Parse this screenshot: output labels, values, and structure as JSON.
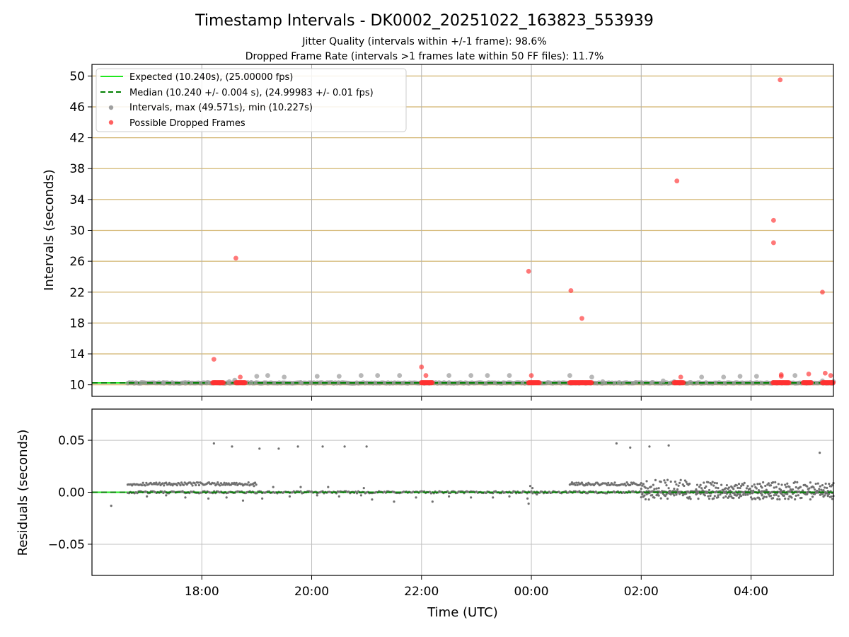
{
  "chart_data": {
    "type": "scatter",
    "title": "Timestamp Intervals - DK0002_20251022_163823_553939",
    "subtitles": [
      "Jitter Quality (intervals within +/-1 frame): 98.6%",
      "Dropped Frame Rate (intervals >1 frames late within 50 FF files): 11.7%"
    ],
    "xlabel": "Time (UTC)",
    "x_unit": "hours since 16:00 UTC",
    "xlim": [
      0.0,
      13.5
    ],
    "x_ticks": [
      {
        "x": 2,
        "label": "18:00"
      },
      {
        "x": 4,
        "label": "20:00"
      },
      {
        "x": 6,
        "label": "22:00"
      },
      {
        "x": 8,
        "label": "00:00"
      },
      {
        "x": 10,
        "label": "02:00"
      },
      {
        "x": 12,
        "label": "04:00"
      }
    ],
    "panels": [
      {
        "id": "intervals",
        "ylabel": "Intervals (seconds)",
        "ylim": [
          8.5,
          51.5
        ],
        "y_ticks": [
          10,
          14,
          18,
          22,
          26,
          30,
          34,
          38,
          42,
          46,
          50
        ],
        "grid_color": "#d2b46e",
        "expected": 10.24,
        "median": 10.24,
        "legend": [
          {
            "kind": "solid",
            "color": "#1fe81f",
            "label": "Expected (10.240s), (25.00000 fps)"
          },
          {
            "kind": "dashed",
            "color": "#008000",
            "label": "Median (10.240 +/- 0.004 s), (24.99983 +/- 0.01 fps)"
          },
          {
            "kind": "dot",
            "color": "#a0a0a0",
            "label": "Intervals, max (49.571s), min (10.227s)"
          },
          {
            "kind": "dot",
            "color": "#ff6060",
            "label": "Possible Dropped Frames"
          }
        ],
        "series": [
          {
            "name": "Intervals",
            "color": "#808080",
            "points": [
              [
                0.9,
                10.3
              ],
              [
                1.3,
                10.3
              ],
              [
                1.7,
                10.3
              ],
              [
                2.1,
                10.3
              ],
              [
                2.5,
                10.4
              ],
              [
                2.6,
                10.6
              ],
              [
                2.9,
                10.3
              ],
              [
                3.0,
                11.1
              ],
              [
                3.2,
                11.2
              ],
              [
                3.5,
                11.0
              ],
              [
                3.8,
                10.3
              ],
              [
                4.1,
                11.1
              ],
              [
                4.5,
                11.1
              ],
              [
                4.9,
                11.2
              ],
              [
                5.2,
                11.2
              ],
              [
                5.6,
                11.2
              ],
              [
                6.2,
                10.3
              ],
              [
                6.5,
                11.2
              ],
              [
                6.9,
                11.2
              ],
              [
                7.2,
                11.2
              ],
              [
                7.6,
                11.2
              ],
              [
                8.3,
                10.3
              ],
              [
                8.7,
                11.2
              ],
              [
                9.1,
                11.0
              ],
              [
                9.3,
                10.4
              ],
              [
                9.6,
                10.3
              ],
              [
                9.9,
                10.3
              ],
              [
                10.2,
                10.3
              ],
              [
                10.4,
                10.5
              ],
              [
                10.6,
                10.4
              ],
              [
                10.9,
                10.3
              ],
              [
                11.1,
                11.0
              ],
              [
                11.5,
                11.0
              ],
              [
                11.8,
                11.1
              ],
              [
                12.1,
                11.1
              ],
              [
                12.4,
                10.3
              ],
              [
                12.8,
                11.2
              ],
              [
                13.1,
                10.3
              ],
              [
                13.3,
                10.5
              ],
              [
                13.5,
                10.4
              ]
            ]
          },
          {
            "name": "Possible Dropped Frames",
            "color": "#ff4040",
            "points": [
              [
                2.22,
                13.3
              ],
              [
                2.62,
                26.4
              ],
              [
                2.7,
                11.0
              ],
              [
                6.0,
                12.3
              ],
              [
                6.08,
                11.2
              ],
              [
                7.95,
                24.7
              ],
              [
                8.0,
                11.2
              ],
              [
                8.72,
                22.2
              ],
              [
                8.92,
                18.6
              ],
              [
                10.65,
                36.4
              ],
              [
                10.72,
                11.0
              ],
              [
                12.41,
                31.3
              ],
              [
                12.41,
                28.4
              ],
              [
                12.53,
                49.5
              ],
              [
                12.55,
                11.3
              ],
              [
                12.55,
                11.1
              ],
              [
                13.05,
                11.4
              ],
              [
                13.3,
                22.0
              ],
              [
                13.35,
                11.5
              ],
              [
                13.45,
                11.2
              ]
            ]
          }
        ],
        "dropped_bands": [
          [
            2.2,
            2.4
          ],
          [
            2.62,
            2.8
          ],
          [
            6.0,
            6.2
          ],
          [
            7.95,
            8.15
          ],
          [
            8.7,
            9.1
          ],
          [
            10.6,
            10.78
          ],
          [
            12.4,
            12.7
          ],
          [
            12.95,
            13.1
          ],
          [
            13.3,
            13.5
          ]
        ]
      },
      {
        "id": "residuals",
        "ylabel": "Residuals (seconds)",
        "ylim": [
          -0.08,
          0.08
        ],
        "y_ticks": [
          {
            "y": 0.05,
            "label": "0.05"
          },
          {
            "y": 0.0,
            "label": "0.00"
          },
          {
            "y": -0.05,
            "label": "−0.05"
          }
        ],
        "series": [
          {
            "name": "Residuals",
            "color": "#707070",
            "points": [
              [
                2.22,
                0.047
              ],
              [
                2.55,
                0.044
              ],
              [
                3.05,
                0.042
              ],
              [
                3.4,
                0.042
              ],
              [
                3.75,
                0.044
              ],
              [
                4.2,
                0.044
              ],
              [
                4.6,
                0.044
              ],
              [
                5.0,
                0.044
              ],
              [
                0.35,
                -0.013
              ],
              [
                1.0,
                -0.004
              ],
              [
                1.35,
                -0.003
              ],
              [
                1.7,
                -0.005
              ],
              [
                2.12,
                -0.006
              ],
              [
                2.45,
                -0.005
              ],
              [
                2.75,
                -0.008
              ],
              [
                3.1,
                -0.006
              ],
              [
                3.6,
                -0.004
              ],
              [
                4.1,
                -0.003
              ],
              [
                4.5,
                -0.004
              ],
              [
                4.9,
                -0.003
              ],
              [
                5.1,
                -0.007
              ],
              [
                5.5,
                -0.009
              ],
              [
                5.9,
                -0.005
              ],
              [
                6.2,
                -0.009
              ],
              [
                6.5,
                -0.004
              ],
              [
                6.9,
                -0.005
              ],
              [
                7.3,
                -0.005
              ],
              [
                7.6,
                -0.004
              ],
              [
                7.93,
                -0.006
              ],
              [
                7.95,
                -0.011
              ],
              [
                8.1,
                -0.002
              ],
              [
                10.3,
                -0.002
              ],
              [
                10.6,
                -0.003
              ],
              [
                11.0,
                -0.002
              ],
              [
                11.4,
                -0.003
              ],
              [
                11.8,
                -0.002
              ],
              [
                12.2,
                -0.003
              ],
              [
                12.6,
                -0.003
              ],
              [
                13.0,
                -0.002
              ],
              [
                13.4,
                -0.003
              ],
              [
                9.55,
                0.047
              ],
              [
                9.8,
                0.043
              ],
              [
                10.15,
                0.044
              ],
              [
                10.5,
                0.045
              ],
              [
                13.25,
                0.038
              ],
              [
                2.95,
                0.006
              ],
              [
                3.3,
                0.005
              ],
              [
                3.8,
                0.005
              ],
              [
                4.3,
                0.005
              ],
              [
                4.95,
                0.004
              ],
              [
                7.98,
                0.006
              ],
              [
                8.02,
                0.004
              ]
            ],
            "bands": [
              {
                "x0": 0.65,
                "x1": 3.0,
                "y": 0.008,
                "spread": 0.0015
              },
              {
                "x0": 8.7,
                "x1": 10.0,
                "y": 0.008,
                "spread": 0.0015
              },
              {
                "x0": 10.0,
                "x1": 10.9,
                "y": 0.006,
                "spread": 0.006
              },
              {
                "x0": 10.0,
                "x1": 13.5,
                "y": -0.003,
                "spread": 0.004
              },
              {
                "x0": 11.0,
                "x1": 13.5,
                "y": 0.005,
                "spread": 0.005
              }
            ]
          }
        ]
      }
    ]
  }
}
